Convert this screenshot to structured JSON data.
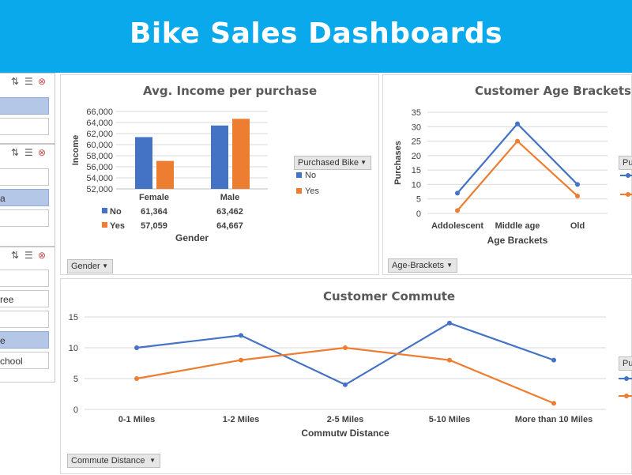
{
  "header": {
    "title": "Bike Sales Dashboards"
  },
  "colors": {
    "header_bg": "#0aa9ec",
    "no": "#4472c4",
    "yes": "#ed7d31",
    "selected": "#b4c7e7"
  },
  "slicers": [
    {
      "items": [
        {
          "label": "",
          "selected": true
        },
        {
          "label": "",
          "selected": false
        }
      ]
    },
    {
      "items": [
        {
          "label": "",
          "selected": false
        },
        {
          "label": "a",
          "selected": true
        },
        {
          "label": "",
          "selected": false
        }
      ]
    },
    {
      "items": [
        {
          "label": "",
          "selected": false
        },
        {
          "label": "ree",
          "selected": false
        },
        {
          "label": "",
          "selected": false
        },
        {
          "label": "e",
          "selected": true
        },
        {
          "label": "chool",
          "selected": false
        }
      ]
    }
  ],
  "chart_data": [
    {
      "type": "bar",
      "title": "Avg. Income per purchase",
      "xlabel": "Gender",
      "ylabel": "Income",
      "ylim": [
        52000,
        66000
      ],
      "yticks": [
        "52,000",
        "54,000",
        "56,000",
        "58,000",
        "60,000",
        "62,000",
        "64,000",
        "66,000"
      ],
      "categories": [
        "Female",
        "Male"
      ],
      "series": [
        {
          "name": "No",
          "values": [
            61364,
            63462
          ],
          "labels": [
            "61,364",
            "63,462"
          ],
          "color": "#4472c4"
        },
        {
          "name": "Yes",
          "values": [
            57059,
            64667
          ],
          "labels": [
            "57,059",
            "64,667"
          ],
          "color": "#ed7d31"
        }
      ],
      "legend_title": "Purchased Bike",
      "legend_position": "right",
      "filter_button": "Gender"
    },
    {
      "type": "line",
      "title": "Customer Age Brackets",
      "xlabel": "Age Brackets",
      "ylabel": "Purchases",
      "ylim": [
        0,
        35
      ],
      "yticks": [
        "0",
        "5",
        "10",
        "15",
        "20",
        "25",
        "30",
        "35"
      ],
      "categories": [
        "Addolescent",
        "Middle age",
        "Old"
      ],
      "series": [
        {
          "values": [
            7,
            31,
            10
          ],
          "color": "#4472c4"
        },
        {
          "values": [
            1,
            25,
            6
          ],
          "color": "#ed7d31"
        }
      ],
      "legend_title": "Pu",
      "filter_button": "Age-Brackets"
    },
    {
      "type": "line",
      "title": "Customer Commute",
      "xlabel": "Commutw Distance",
      "ylabel": "",
      "ylim": [
        0,
        15
      ],
      "yticks": [
        "0",
        "5",
        "10",
        "15"
      ],
      "categories": [
        "0-1 Miles",
        "1-2 Miles",
        "2-5 Miles",
        "5-10 Miles",
        "More than 10 Miles"
      ],
      "series": [
        {
          "values": [
            10,
            12,
            4,
            14,
            8
          ],
          "color": "#4472c4"
        },
        {
          "values": [
            5,
            8,
            10,
            8,
            1
          ],
          "color": "#ed7d31"
        }
      ],
      "legend_title": "Pu",
      "filter_button": "Commute Distance"
    }
  ]
}
